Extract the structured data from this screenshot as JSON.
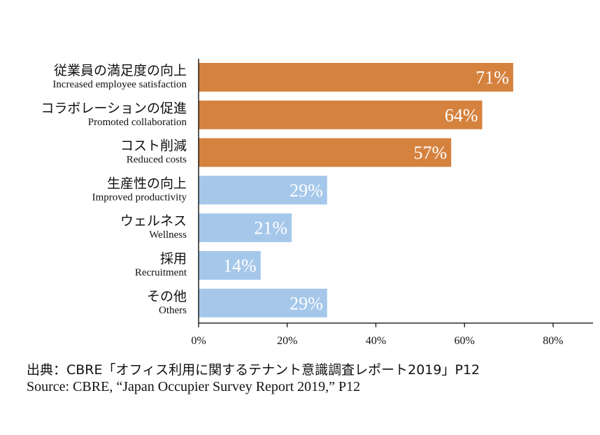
{
  "chart_data": {
    "type": "bar",
    "orientation": "horizontal",
    "categories": [
      {
        "jp": "従業員の満足度の向上",
        "en": "Increased employee satisfaction"
      },
      {
        "jp": "コラボレーションの促進",
        "en": "Promoted collaboration"
      },
      {
        "jp": "コスト削減",
        "en": "Reduced costs"
      },
      {
        "jp": "生産性の向上",
        "en": "Improved productivity"
      },
      {
        "jp": "ウェルネス",
        "en": "Wellness"
      },
      {
        "jp": "採用",
        "en": "Recruitment"
      },
      {
        "jp": "その他",
        "en": "Others"
      }
    ],
    "values": [
      71,
      64,
      57,
      29,
      21,
      14,
      29
    ],
    "value_labels": [
      "71%",
      "64%",
      "57%",
      "29%",
      "21%",
      "14%",
      "29%"
    ],
    "bar_colors": [
      "#D5823F",
      "#D5823F",
      "#D5823F",
      "#A5C7EA",
      "#A5C7EA",
      "#A5C7EA",
      "#A5C7EA"
    ],
    "xlim": [
      0,
      89
    ],
    "xticks": [
      0,
      20,
      40,
      60,
      80
    ],
    "xtick_labels": [
      "0%",
      "20%",
      "40%",
      "60%",
      "80%"
    ],
    "grid": false
  },
  "source": {
    "jp": "出典：CBRE「オフィス利用に関するテナント意識調査レポート2019」P12",
    "en": "Source: CBRE, “Japan Occupier Survey Report 2019,” P12"
  }
}
